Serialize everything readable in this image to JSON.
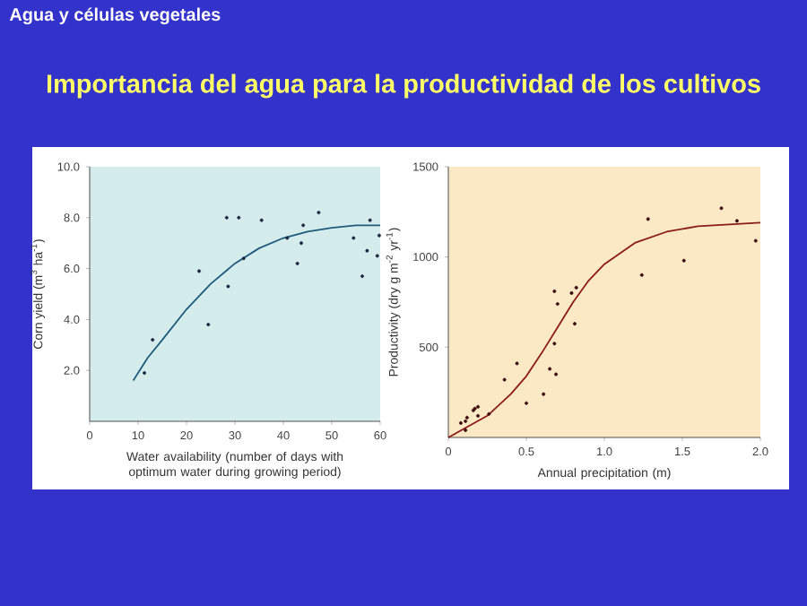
{
  "chart_data": [
    {
      "type": "other",
      "subtitle": "Agua y células vegetales",
      "title": "Importancia del agua para la productividad de los cultivos"
    },
    {
      "type": "scatter",
      "xlabel": "Water availability (number of days with optimum water during growing period)",
      "ylabel": "Corn yield (m$^{3}$ ha$^{-1}$)",
      "xlim": [
        0,
        60
      ],
      "ylim": [
        0,
        10
      ],
      "xticks": [
        0,
        10,
        20,
        30,
        40,
        50,
        60
      ],
      "yticks": [
        {
          "value": 2,
          "label": "2.0"
        },
        {
          "value": 4,
          "label": "4.0"
        },
        {
          "value": 6,
          "label": "6.0"
        },
        {
          "value": 8,
          "label": "8.0"
        },
        {
          "value": 10,
          "label": "10.0"
        }
      ],
      "series": [
        {
          "type": "scatter",
          "marker": "circle",
          "color": "#1a2a40",
          "x": [
            11.3,
            13.0,
            22.6,
            24.5,
            28.3,
            28.6,
            30.8,
            31.8,
            35.5,
            40.8,
            42.9,
            43.7,
            44.1,
            47.3,
            54.5,
            56.3,
            57.3,
            57.9,
            59.4,
            59.8
          ],
          "values": [
            1.9,
            3.2,
            5.9,
            3.8,
            8.0,
            5.3,
            8.0,
            6.4,
            7.9,
            7.2,
            6.2,
            7.0,
            7.7,
            8.2,
            7.2,
            5.7,
            6.7,
            7.9,
            6.5,
            7.3
          ]
        },
        {
          "type": "line",
          "marker": "none",
          "color": "#1f5a7a",
          "x": [
            9,
            12,
            15,
            20,
            25,
            30,
            35,
            40,
            45,
            50,
            55,
            60
          ],
          "values": [
            1.6,
            2.5,
            3.2,
            4.4,
            5.4,
            6.2,
            6.8,
            7.2,
            7.45,
            7.6,
            7.7,
            7.7
          ]
        }
      ]
    },
    {
      "type": "scatter",
      "xlabel": "Annual precipitation (m)",
      "ylabel": "Productivity (dry g m$^{-2}$ yr$^{-1}$)",
      "xlim": [
        0,
        2
      ],
      "ylim": [
        0,
        1500
      ],
      "xticks": [
        0,
        0.5,
        {
          "value": 1,
          "label": "1.0"
        },
        1.5,
        {
          "value": 2,
          "label": "2.0"
        }
      ],
      "yticks": [
        500,
        1000,
        1500
      ],
      "series": [
        {
          "type": "scatter",
          "marker": "circle",
          "color": "#3a0d0d",
          "x": [
            0.08,
            0.11,
            0.12,
            0.11,
            0.16,
            0.17,
            0.19,
            0.19,
            0.26,
            0.36,
            0.44,
            0.5,
            0.61,
            0.65,
            0.68,
            0.68,
            0.69,
            0.7,
            0.79,
            0.82,
            0.81,
            1.24,
            1.28,
            1.51,
            1.75,
            1.85,
            1.97
          ],
          "values": [
            80,
            90,
            110,
            40,
            150,
            160,
            170,
            120,
            130,
            320,
            410,
            190,
            240,
            380,
            810,
            520,
            350,
            740,
            800,
            830,
            630,
            900,
            1210,
            980,
            1270,
            1200,
            1090
          ]
        },
        {
          "type": "line",
          "marker": "none",
          "color": "#8b1a1a",
          "x": [
            0,
            0.25,
            0.4,
            0.5,
            0.6,
            0.7,
            0.8,
            0.9,
            1.0,
            1.2,
            1.4,
            1.6,
            1.8,
            2.0
          ],
          "values": [
            0,
            120,
            240,
            340,
            470,
            610,
            750,
            870,
            960,
            1080,
            1140,
            1170,
            1180,
            1190
          ]
        }
      ]
    }
  ]
}
